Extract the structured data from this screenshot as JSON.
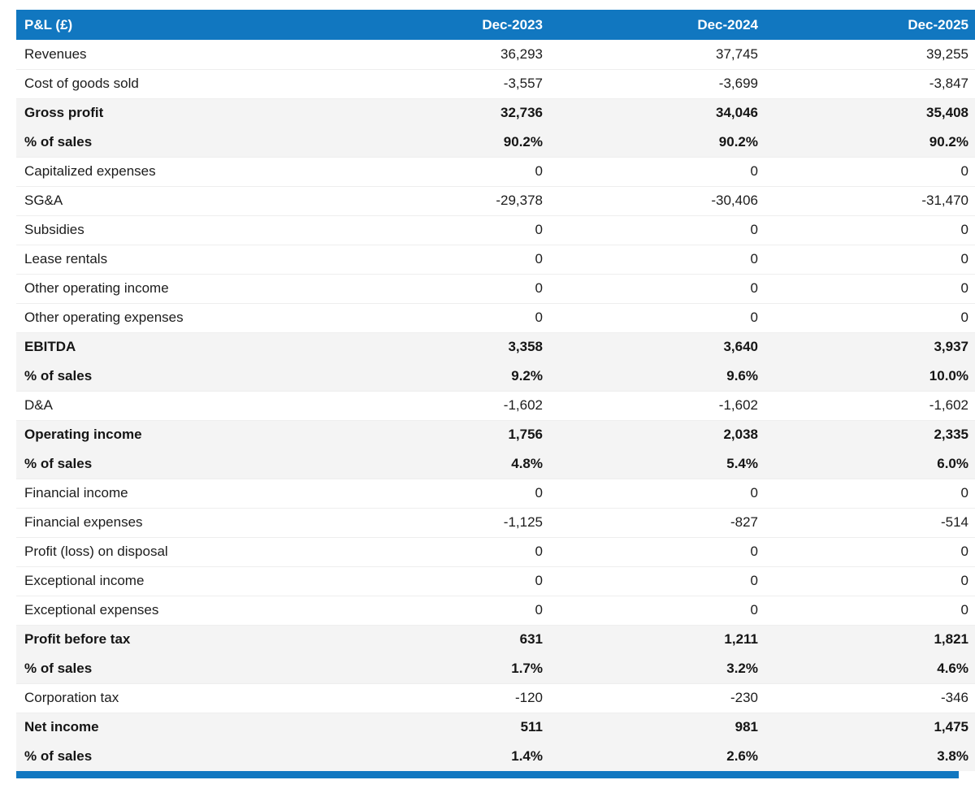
{
  "table": {
    "title_column": "P&L (£)",
    "columns": [
      "Dec-2023",
      "Dec-2024",
      "Dec-2025"
    ],
    "rows": [
      {
        "label": "Revenues",
        "values": [
          "36,293",
          "37,745",
          "39,255"
        ],
        "emphasis": false
      },
      {
        "label": "Cost of goods sold",
        "values": [
          "-3,557",
          "-3,699",
          "-3,847"
        ],
        "emphasis": false
      },
      {
        "label": "Gross profit",
        "values": [
          "32,736",
          "34,046",
          "35,408"
        ],
        "emphasis": true
      },
      {
        "label": "% of sales",
        "values": [
          "90.2%",
          "90.2%",
          "90.2%"
        ],
        "emphasis": true
      },
      {
        "label": "Capitalized expenses",
        "values": [
          "0",
          "0",
          "0"
        ],
        "emphasis": false
      },
      {
        "label": "SG&A",
        "values": [
          "-29,378",
          "-30,406",
          "-31,470"
        ],
        "emphasis": false
      },
      {
        "label": "Subsidies",
        "values": [
          "0",
          "0",
          "0"
        ],
        "emphasis": false
      },
      {
        "label": "Lease rentals",
        "values": [
          "0",
          "0",
          "0"
        ],
        "emphasis": false
      },
      {
        "label": "Other operating income",
        "values": [
          "0",
          "0",
          "0"
        ],
        "emphasis": false
      },
      {
        "label": "Other operating expenses",
        "values": [
          "0",
          "0",
          "0"
        ],
        "emphasis": false
      },
      {
        "label": "EBITDA",
        "values": [
          "3,358",
          "3,640",
          "3,937"
        ],
        "emphasis": true
      },
      {
        "label": "% of sales",
        "values": [
          "9.2%",
          "9.6%",
          "10.0%"
        ],
        "emphasis": true
      },
      {
        "label": "D&A",
        "values": [
          "-1,602",
          "-1,602",
          "-1,602"
        ],
        "emphasis": false
      },
      {
        "label": "Operating income",
        "values": [
          "1,756",
          "2,038",
          "2,335"
        ],
        "emphasis": true
      },
      {
        "label": "% of sales",
        "values": [
          "4.8%",
          "5.4%",
          "6.0%"
        ],
        "emphasis": true
      },
      {
        "label": "Financial income",
        "values": [
          "0",
          "0",
          "0"
        ],
        "emphasis": false
      },
      {
        "label": "Financial expenses",
        "values": [
          "-1,125",
          "-827",
          "-514"
        ],
        "emphasis": false
      },
      {
        "label": "Profit (loss) on disposal",
        "values": [
          "0",
          "0",
          "0"
        ],
        "emphasis": false
      },
      {
        "label": "Exceptional income",
        "values": [
          "0",
          "0",
          "0"
        ],
        "emphasis": false
      },
      {
        "label": "Exceptional expenses",
        "values": [
          "0",
          "0",
          "0"
        ],
        "emphasis": false
      },
      {
        "label": "Profit before tax",
        "values": [
          "631",
          "1,211",
          "1,821"
        ],
        "emphasis": true
      },
      {
        "label": "% of sales",
        "values": [
          "1.7%",
          "3.2%",
          "4.6%"
        ],
        "emphasis": true
      },
      {
        "label": "Corporation tax",
        "values": [
          "-120",
          "-230",
          "-346"
        ],
        "emphasis": false
      },
      {
        "label": "Net income",
        "values": [
          "511",
          "981",
          "1,475"
        ],
        "emphasis": true
      },
      {
        "label": "% of sales",
        "values": [
          "1.4%",
          "2.6%",
          "3.8%"
        ],
        "emphasis": true
      }
    ]
  },
  "colors": {
    "header_bg": "#1177c0",
    "header_text": "#ffffff",
    "emphasis_row_bg": "#f4f4f4",
    "row_text": "#1c1c1c",
    "row_border": "#eeeeee",
    "bottom_bar": "#1177c0"
  }
}
